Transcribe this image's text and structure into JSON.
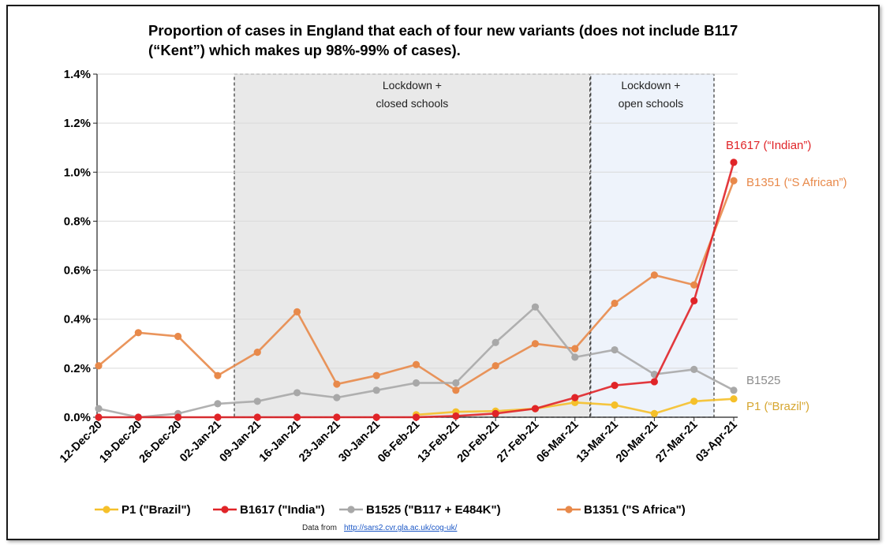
{
  "chart_data": {
    "type": "line",
    "title": [
      "Proportion of cases in England that each of four new variants (does not include B117",
      "(“Kent”) which makes up 98%-99% of cases)."
    ],
    "xlabel": "",
    "ylabel": "",
    "ylim": [
      0,
      1.4
    ],
    "yticks": [
      "0.0%",
      "0.2%",
      "0.4%",
      "0.6%",
      "0.8%",
      "1.0%",
      "1.2%",
      "1.4%"
    ],
    "ytick_values": [
      0,
      0.2,
      0.4,
      0.6,
      0.8,
      1.0,
      1.2,
      1.4
    ],
    "categories": [
      "12-Dec-20",
      "19-Dec-20",
      "26-Dec-20",
      "02-Jan-21",
      "09-Jan-21",
      "16-Jan-21",
      "23-Jan-21",
      "30-Jan-21",
      "06-Feb-21",
      "13-Feb-21",
      "20-Feb-21",
      "27-Feb-21",
      "06-Mar-21",
      "13-Mar-21",
      "20-Mar-21",
      "27-Mar-21",
      "03-Apr-21"
    ],
    "grid": "horizontal",
    "legend_position": "bottom",
    "series": [
      {
        "name": "P1 (\"Brazil\")",
        "color": "#f5c02a",
        "end_label": "P1 (“Brazil”)",
        "end_label_color": "#d6a630",
        "values": [
          null,
          null,
          null,
          null,
          null,
          null,
          null,
          null,
          0.01,
          0.022,
          0.025,
          0.035,
          0.06,
          0.05,
          0.015,
          0.065,
          0.075
        ]
      },
      {
        "name": "B1617 (\"India\")",
        "color": "#e02428",
        "end_label": "B1617 (“Indian”)",
        "end_label_color": "#e02428",
        "values": [
          0.0,
          0.0,
          0.0,
          0.0,
          0.0,
          0.0,
          0.0,
          0.0,
          0.0,
          0.005,
          0.015,
          0.035,
          0.08,
          0.13,
          0.145,
          0.475,
          1.04
        ]
      },
      {
        "name": "B1525 (\"B117 + E484K\")",
        "color": "#a8a8a8",
        "end_label": "B1525",
        "end_label_color": "#8c8c8c",
        "values": [
          0.035,
          0.0,
          0.015,
          0.055,
          0.065,
          0.1,
          0.08,
          0.11,
          0.14,
          0.14,
          0.305,
          0.45,
          0.245,
          0.275,
          0.175,
          0.195,
          0.11
        ]
      },
      {
        "name": "B1351 (\"S Africa\")",
        "color": "#e8894a",
        "end_label": "B1351 (“S African”)",
        "end_label_color": "#e8894a",
        "values": [
          0.21,
          0.345,
          0.33,
          0.17,
          0.265,
          0.43,
          0.135,
          0.17,
          0.215,
          0.11,
          0.21,
          0.3,
          0.28,
          0.465,
          0.58,
          0.54,
          0.965
        ]
      }
    ],
    "annotations": [
      {
        "text": [
          "Lockdown +",
          "closed schools"
        ],
        "from_category": "09-Jan-21",
        "to_category": "06-Mar-21",
        "fill": "#e9e9e9"
      },
      {
        "text": [
          "Lockdown +",
          "open schools"
        ],
        "from_category": "06-Mar-21",
        "to_category": "03-Apr-21",
        "fill": "#eef3fb"
      }
    ],
    "source": {
      "prefix": "Data from",
      "link": "http://sars2.cvr.gla.ac.uk/cog-uk/"
    }
  }
}
